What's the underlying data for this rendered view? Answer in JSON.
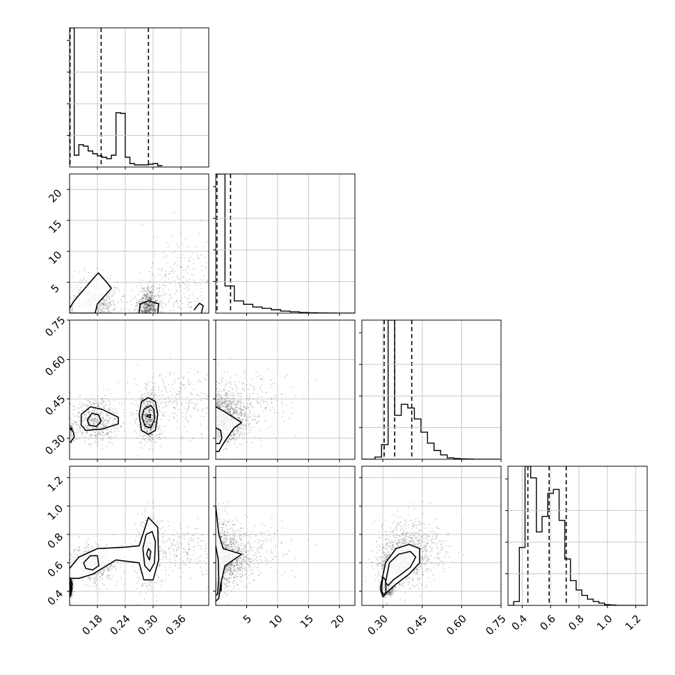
{
  "chart_data": {
    "type": "corner",
    "title": "",
    "params": [
      {
        "range": [
          0.12,
          0.42
        ],
        "ticks": [
          0.18,
          0.24,
          0.3,
          0.36
        ],
        "labels": [
          "0.18",
          "0.24",
          "0.30",
          "0.36"
        ]
      },
      {
        "range": [
          0,
          22.5
        ],
        "ticks": [
          5,
          10,
          15,
          20
        ],
        "labels": [
          "5",
          "10",
          "15",
          "20"
        ]
      },
      {
        "range": [
          0.22,
          0.75
        ],
        "ticks": [
          0.3,
          0.45,
          0.6,
          0.75
        ],
        "labels": [
          "0.30",
          "0.45",
          "0.60",
          "0.75"
        ]
      },
      {
        "range": [
          0.3,
          1.28
        ],
        "ticks": [
          0.4,
          0.6,
          0.8,
          1.0,
          1.2
        ],
        "labels": [
          "0.4",
          "0.6",
          "0.8",
          "1.0",
          "1.2"
        ]
      }
    ],
    "marginals": [
      {
        "bin_start": 0.12,
        "bin_width": 0.01,
        "counts": [
          200,
          17,
          32,
          30,
          23,
          19,
          16,
          14,
          12,
          17,
          78,
          77,
          14,
          5,
          3,
          3,
          3,
          4,
          5,
          2
        ],
        "quantiles": [
          0.121,
          0.188,
          0.29
        ]
      },
      {
        "bin_start": 0,
        "bin_width": 1.5,
        "counts": [
          205,
          40,
          18,
          13,
          9,
          7,
          5,
          3,
          2,
          1,
          0.5,
          0.3,
          0.2,
          0.1,
          0.1
        ],
        "quantiles": [
          0.2,
          2.4
        ]
      },
      {
        "bin_start": 0.22,
        "bin_width": 0.025,
        "counts": [
          0,
          0,
          3,
          20,
          190,
          60,
          75,
          70,
          55,
          37,
          22,
          12,
          6,
          2,
          1,
          0.5,
          0.3,
          0,
          0,
          0,
          0
        ],
        "quantiles": [
          0.305,
          0.345,
          0.41
        ]
      },
      {
        "bin_start": 0.3,
        "bin_width": 0.04,
        "counts": [
          0,
          5,
          75,
          180,
          165,
          95,
          115,
          145,
          150,
          110,
          60,
          32,
          20,
          13,
          8,
          5,
          3,
          1,
          0.5,
          0,
          0,
          0,
          0,
          0
        ],
        "quantiles": [
          0.44,
          0.59,
          0.71
        ]
      }
    ],
    "point_clusters": [
      {
        "weight": 0.25,
        "mean": [
          0.122,
          0.3,
          0.32,
          0.43
        ],
        "sd": [
          0.002,
          0.25,
          0.012,
          0.03
        ]
      },
      {
        "weight": 0.3,
        "mean": [
          0.175,
          2.2,
          0.37,
          0.6
        ],
        "sd": [
          0.025,
          2.0,
          0.045,
          0.07
        ]
      },
      {
        "weight": 0.32,
        "mean": [
          0.29,
          1.2,
          0.38,
          0.68
        ],
        "sd": [
          0.012,
          1.5,
          0.055,
          0.12
        ]
      },
      {
        "weight": 0.13,
        "mean": [
          0.355,
          5.0,
          0.45,
          0.7
        ],
        "sd": [
          0.04,
          4.0,
          0.06,
          0.08
        ]
      }
    ],
    "contours": [
      {
        "row": 1,
        "col": 0,
        "paths": [
          [
            [
              0.12,
              0.8
            ],
            [
              0.13,
              2.0
            ],
            [
              0.17,
              5.5
            ],
            [
              0.182,
              6.5
            ],
            [
              0.2,
              5.0
            ],
            [
              0.21,
              4.0
            ],
            [
              0.18,
              1.5
            ],
            [
              0.175,
              0.0
            ],
            [
              0.12,
              0.0
            ]
          ],
          [
            [
              0.27,
              0.0
            ],
            [
              0.272,
              1.5
            ],
            [
              0.29,
              2.0
            ],
            [
              0.312,
              1.5
            ],
            [
              0.31,
              0.0
            ]
          ],
          [
            [
              0.388,
              0.5
            ],
            [
              0.4,
              1.6
            ],
            [
              0.408,
              1.2
            ],
            [
              0.404,
              0.0
            ]
          ]
        ]
      },
      {
        "row": 2,
        "col": 0,
        "paths": [
          [
            [
              0.12,
              0.338
            ],
            [
              0.128,
              0.325
            ],
            [
              0.13,
              0.305
            ],
            [
              0.122,
              0.285
            ],
            [
              0.12,
              0.285
            ]
          ],
          [
            [
              0.145,
              0.39
            ],
            [
              0.165,
              0.42
            ],
            [
              0.19,
              0.41
            ],
            [
              0.225,
              0.38
            ],
            [
              0.225,
              0.355
            ],
            [
              0.19,
              0.335
            ],
            [
              0.155,
              0.33
            ],
            [
              0.145,
              0.35
            ],
            [
              0.145,
              0.39
            ]
          ],
          [
            [
              0.158,
              0.37
            ],
            [
              0.168,
              0.395
            ],
            [
              0.182,
              0.39
            ],
            [
              0.188,
              0.365
            ],
            [
              0.178,
              0.345
            ],
            [
              0.162,
              0.35
            ],
            [
              0.158,
              0.37
            ]
          ],
          [
            [
              0.27,
              0.39
            ],
            [
              0.275,
              0.44
            ],
            [
              0.29,
              0.455
            ],
            [
              0.305,
              0.44
            ],
            [
              0.31,
              0.39
            ],
            [
              0.305,
              0.33
            ],
            [
              0.29,
              0.315
            ],
            [
              0.275,
              0.33
            ],
            [
              0.27,
              0.39
            ]
          ],
          [
            [
              0.276,
              0.38
            ],
            [
              0.28,
              0.41
            ],
            [
              0.295,
              0.425
            ],
            [
              0.302,
              0.41
            ],
            [
              0.303,
              0.37
            ],
            [
              0.295,
              0.34
            ],
            [
              0.283,
              0.345
            ],
            [
              0.276,
              0.38
            ]
          ],
          [
            [
              0.286,
              0.385
            ],
            [
              0.294,
              0.39
            ],
            [
              0.294,
              0.378
            ],
            [
              0.286,
              0.385
            ]
          ]
        ]
      },
      {
        "row": 2,
        "col": 1,
        "paths": [
          [
            [
              0.0,
              0.42
            ],
            [
              1.5,
              0.4
            ],
            [
              3.5,
              0.37
            ],
            [
              4.2,
              0.36
            ],
            [
              3.0,
              0.34
            ],
            [
              1.5,
              0.29
            ],
            [
              0.5,
              0.25
            ],
            [
              0.0,
              0.25
            ]
          ],
          [
            [
              0.0,
              0.34
            ],
            [
              0.8,
              0.33
            ],
            [
              1.0,
              0.3
            ],
            [
              0.6,
              0.28
            ],
            [
              0.0,
              0.28
            ]
          ]
        ]
      },
      {
        "row": 3,
        "col": 0,
        "paths": [
          [
            [
              0.12,
              0.56
            ],
            [
              0.14,
              0.64
            ],
            [
              0.18,
              0.7
            ],
            [
              0.24,
              0.71
            ],
            [
              0.27,
              0.72
            ],
            [
              0.29,
              0.92
            ],
            [
              0.31,
              0.85
            ],
            [
              0.312,
              0.62
            ],
            [
              0.3,
              0.48
            ],
            [
              0.28,
              0.48
            ],
            [
              0.27,
              0.6
            ],
            [
              0.22,
              0.62
            ],
            [
              0.17,
              0.52
            ],
            [
              0.14,
              0.49
            ],
            [
              0.12,
              0.49
            ]
          ],
          [
            [
              0.15,
              0.6
            ],
            [
              0.165,
              0.65
            ],
            [
              0.18,
              0.65
            ],
            [
              0.183,
              0.58
            ],
            [
              0.17,
              0.55
            ],
            [
              0.155,
              0.56
            ],
            [
              0.15,
              0.6
            ]
          ],
          [
            [
              0.278,
              0.7
            ],
            [
              0.285,
              0.8
            ],
            [
              0.298,
              0.82
            ],
            [
              0.305,
              0.75
            ],
            [
              0.303,
              0.6
            ],
            [
              0.293,
              0.54
            ],
            [
              0.282,
              0.58
            ],
            [
              0.278,
              0.7
            ]
          ],
          [
            [
              0.286,
              0.66
            ],
            [
              0.29,
              0.7
            ],
            [
              0.295,
              0.68
            ],
            [
              0.292,
              0.62
            ],
            [
              0.286,
              0.66
            ]
          ],
          [
            [
              0.12,
              0.5
            ],
            [
              0.126,
              0.45
            ],
            [
              0.122,
              0.37
            ],
            [
              0.12,
              0.36
            ]
          ],
          [
            [
              0.12,
              0.47
            ],
            [
              0.123,
              0.43
            ],
            [
              0.12,
              0.39
            ]
          ]
        ]
      },
      {
        "row": 3,
        "col": 1,
        "paths": [
          [
            [
              0.0,
              1.0
            ],
            [
              0.5,
              0.8
            ],
            [
              1.2,
              0.7
            ],
            [
              4.2,
              0.66
            ],
            [
              1.5,
              0.58
            ],
            [
              0.8,
              0.45
            ],
            [
              0.5,
              0.35
            ],
            [
              0.0,
              0.33
            ]
          ],
          [
            [
              0.0,
              0.72
            ],
            [
              0.4,
              0.62
            ],
            [
              0.5,
              0.48
            ],
            [
              0.3,
              0.38
            ],
            [
              0.0,
              0.37
            ]
          ]
        ]
      },
      {
        "row": 3,
        "col": 2,
        "paths": [
          [
            [
              0.29,
              0.42
            ],
            [
              0.31,
              0.6
            ],
            [
              0.35,
              0.7
            ],
            [
              0.4,
              0.73
            ],
            [
              0.44,
              0.7
            ],
            [
              0.44,
              0.6
            ],
            [
              0.4,
              0.52
            ],
            [
              0.35,
              0.45
            ],
            [
              0.32,
              0.4
            ],
            [
              0.3,
              0.36
            ],
            [
              0.29,
              0.42
            ]
          ],
          [
            [
              0.31,
              0.46
            ],
            [
              0.325,
              0.6
            ],
            [
              0.36,
              0.66
            ],
            [
              0.405,
              0.68
            ],
            [
              0.425,
              0.64
            ],
            [
              0.405,
              0.57
            ],
            [
              0.37,
              0.52
            ],
            [
              0.34,
              0.48
            ],
            [
              0.32,
              0.44
            ],
            [
              0.31,
              0.46
            ]
          ],
          [
            [
              0.296,
              0.44
            ],
            [
              0.3,
              0.5
            ],
            [
              0.31,
              0.48
            ],
            [
              0.312,
              0.4
            ],
            [
              0.305,
              0.37
            ],
            [
              0.296,
              0.4
            ],
            [
              0.296,
              0.44
            ]
          ]
        ]
      }
    ],
    "dark_cells": [
      {
        "row": 1,
        "col": 0,
        "x": [
          0.12,
          0.128
        ],
        "y": [
          0.0,
          1.2
        ]
      },
      {
        "row": 2,
        "col": 0,
        "x": [
          0.12,
          0.126
        ],
        "y": [
          0.3,
          0.33
        ]
      },
      {
        "row": 2,
        "col": 1,
        "x": [
          0.0,
          1.0
        ],
        "y": [
          0.3,
          0.33
        ]
      },
      {
        "row": 3,
        "col": 0,
        "x": [
          0.12,
          0.126
        ],
        "y": [
          0.4,
          0.46
        ]
      },
      {
        "row": 3,
        "col": 1,
        "x": [
          0.0,
          1.0
        ],
        "y": [
          0.4,
          0.46
        ]
      },
      {
        "row": 3,
        "col": 2,
        "x": [
          0.3,
          0.31
        ],
        "y": [
          0.4,
          0.45
        ]
      }
    ]
  }
}
